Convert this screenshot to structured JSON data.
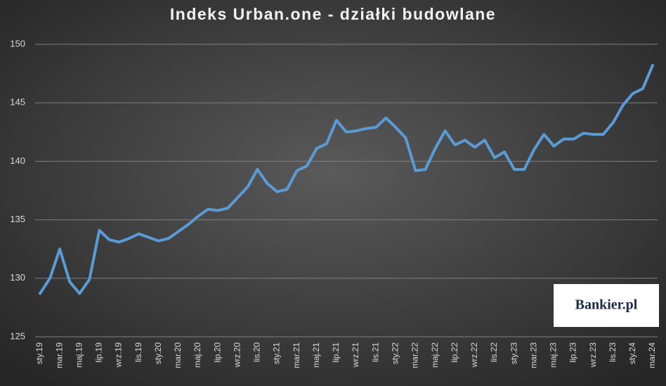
{
  "chart_data": {
    "type": "line",
    "title": "Indeks Urban.one - działki budowlane",
    "logo": "Bankier.pl",
    "categories": [
      "sty.19",
      null,
      "mar.19",
      null,
      "maj.19",
      null,
      "lip.19",
      null,
      "wrz.19",
      null,
      "lis.19",
      null,
      "sty.20",
      null,
      "mar.20",
      null,
      "maj.20",
      null,
      "lip.20",
      null,
      "wrz.20",
      null,
      "lis.20",
      null,
      "sty.21",
      null,
      "mar.21",
      null,
      "maj.21",
      null,
      "lip.21",
      null,
      "wrz.21",
      null,
      "lis.21",
      null,
      "sty.22",
      null,
      "mar.22",
      null,
      "maj.22",
      null,
      "lip.22",
      null,
      "wrz.22",
      null,
      "lis.22",
      null,
      "sty.23",
      null,
      "mar.23",
      null,
      "maj.23",
      null,
      "lip.23",
      null,
      "wrz.23",
      null,
      "lis.23",
      null,
      "sty.24",
      null,
      "mar.24"
    ],
    "series": [
      {
        "color": "#5b9bd5",
        "values": [
          128.7,
          130.0,
          132.5,
          129.7,
          128.7,
          129.9,
          134.1,
          133.3,
          133.1,
          133.4,
          133.8,
          133.5,
          133.2,
          133.4,
          134.0,
          134.6,
          135.3,
          135.9,
          135.8,
          136.0,
          136.9,
          137.8,
          139.3,
          138.1,
          137.4,
          137.6,
          139.2,
          139.6,
          141.1,
          141.5,
          143.5,
          142.5,
          142.6,
          142.8,
          142.9,
          143.7,
          142.9,
          142.0,
          139.2,
          139.3,
          141.1,
          142.6,
          141.4,
          141.8,
          141.2,
          141.8,
          140.3,
          140.8,
          139.3,
          139.3,
          141.0,
          142.3,
          141.3,
          141.9,
          141.9,
          142.4,
          142.3,
          142.3,
          143.3,
          144.8,
          145.8,
          146.2,
          148.2
        ]
      }
    ],
    "ylim": [
      125,
      150
    ],
    "yticks": [
      125,
      130,
      135,
      140,
      145,
      150
    ],
    "grid": true
  }
}
